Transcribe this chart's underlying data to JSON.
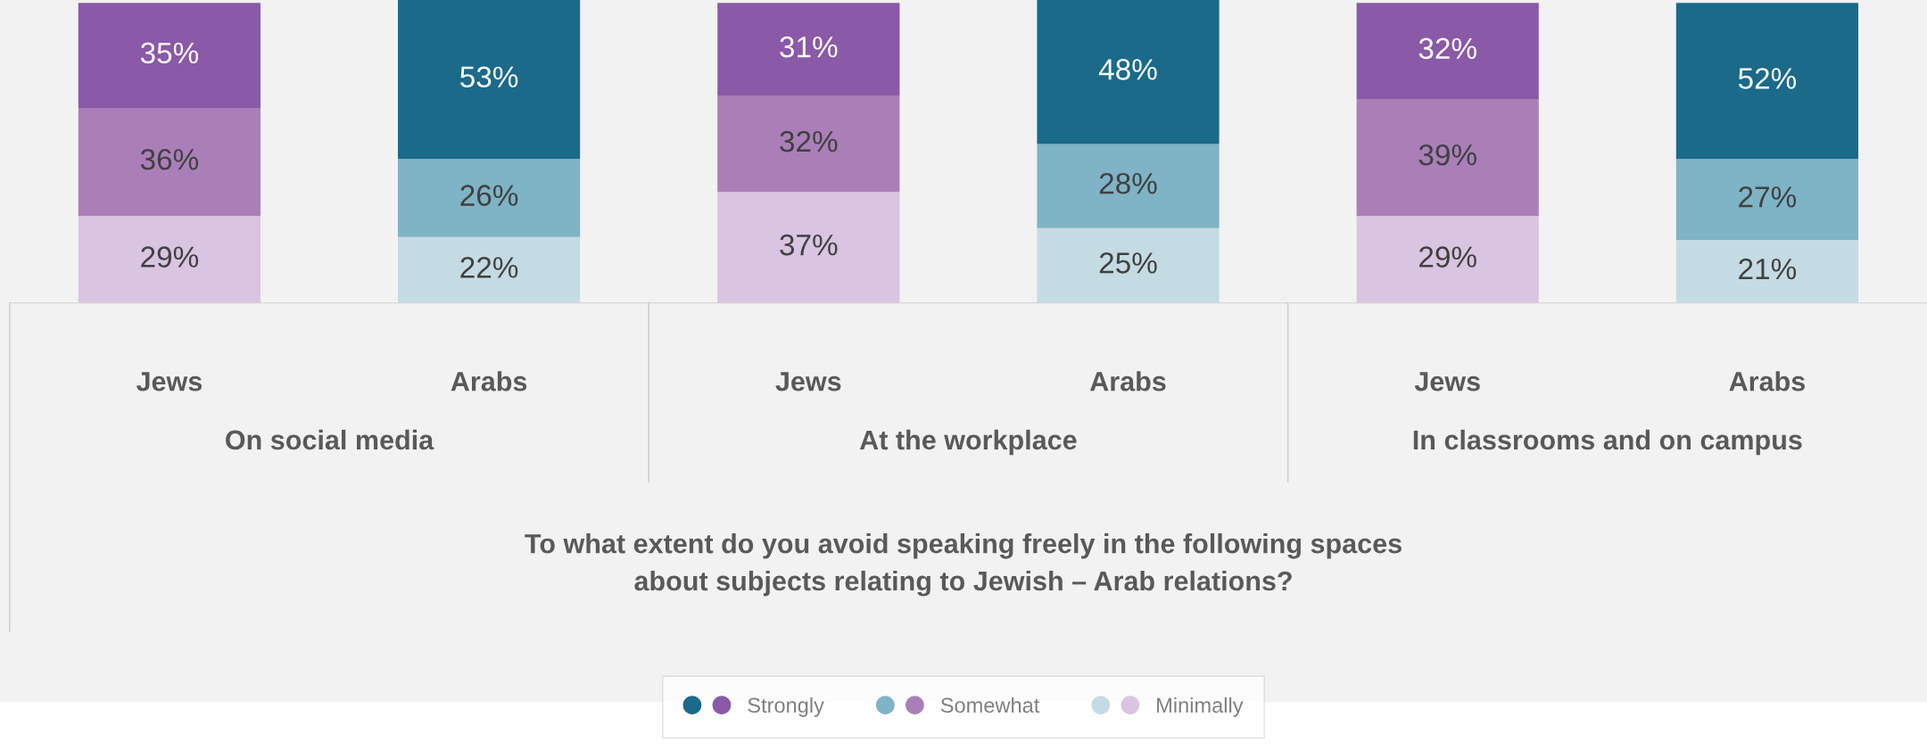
{
  "chart_data": {
    "type": "bar",
    "stacked": true,
    "categories": [
      "Jews",
      "Arabs",
      "Jews",
      "Arabs",
      "Jews",
      "Arabs"
    ],
    "series": [
      {
        "name": "Minimally",
        "colors": [
          "#d9c4e1",
          "#c5dbe3",
          "#d9c4e1",
          "#c5dbe3",
          "#d9c4e1",
          "#c5dbe3"
        ],
        "values": [
          29,
          22,
          37,
          25,
          29,
          21
        ],
        "value_labels": [
          "29%",
          "22%",
          "37%",
          "25%",
          "29%",
          "21%"
        ]
      },
      {
        "name": "Somewhat",
        "colors": [
          "#aa7fb8",
          "#7fb3c6",
          "#aa7fb8",
          "#7fb3c6",
          "#aa7fb8",
          "#7fb3c6"
        ],
        "values": [
          36,
          26,
          32,
          28,
          39,
          27
        ],
        "value_labels": [
          "36%",
          "26%",
          "32%",
          "28%",
          "39%",
          "27%"
        ]
      },
      {
        "name": "Strongly",
        "colors": [
          "#8a59a7",
          "#1b6a89",
          "#8a59a7",
          "#1b6a89",
          "#8a59a7",
          "#1b6a89"
        ],
        "values": [
          35,
          53,
          31,
          48,
          32,
          52
        ],
        "value_labels": [
          "35%",
          "53%",
          "31%",
          "48%",
          "32%",
          "52%"
        ]
      }
    ],
    "ylim": [
      0,
      101
    ],
    "annotations": [
      "On social media",
      "At the workplace",
      "In classrooms and on campus",
      "To what extent do you avoid speaking freely in the following spaces\nabout subjects relating to Jewish – Arab relations?"
    ],
    "legend": "bottom"
  }
}
